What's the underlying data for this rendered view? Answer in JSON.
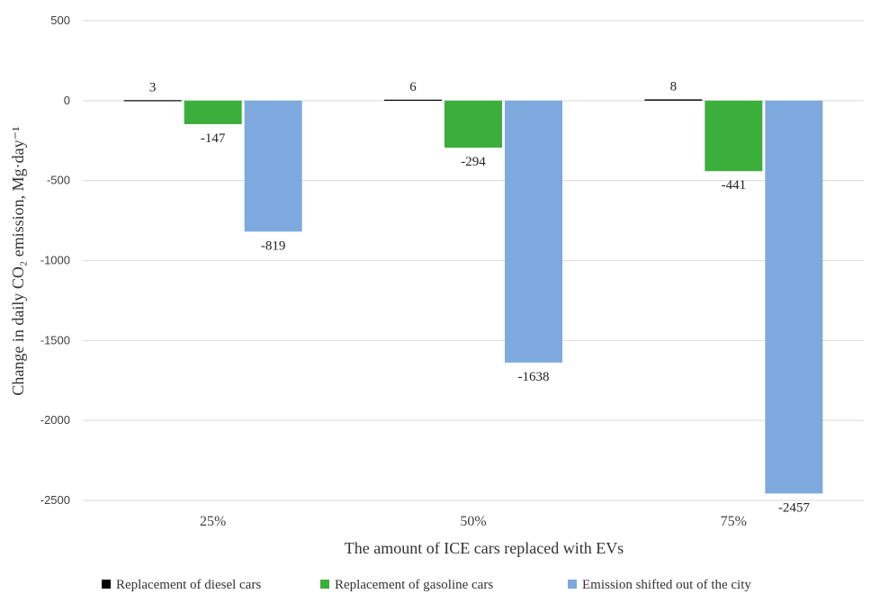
{
  "chart_data": {
    "type": "bar",
    "categories": [
      "25%",
      "50%",
      "75%"
    ],
    "series": [
      {
        "name": "Replacement of diesel cars",
        "values": [
          3,
          6,
          8
        ],
        "color": "#000000"
      },
      {
        "name": "Replacement of gasoline cars",
        "values": [
          -147,
          -294,
          -441
        ],
        "color": "#3cae3c"
      },
      {
        "name": "Emission shifted out of the city",
        "values": [
          -819,
          -1638,
          -2457
        ],
        "color": "#7ea9de"
      }
    ],
    "xlabel": "The amount of ICE cars replaced with EVs",
    "ylabel": "Change in daily CO₂ emission, Mg·day⁻¹",
    "ylim": [
      -2500,
      500
    ],
    "yticks": [
      500,
      0,
      -500,
      -1000,
      -1500,
      -2000,
      -2500
    ],
    "grid": true,
    "legend": "bottom"
  }
}
